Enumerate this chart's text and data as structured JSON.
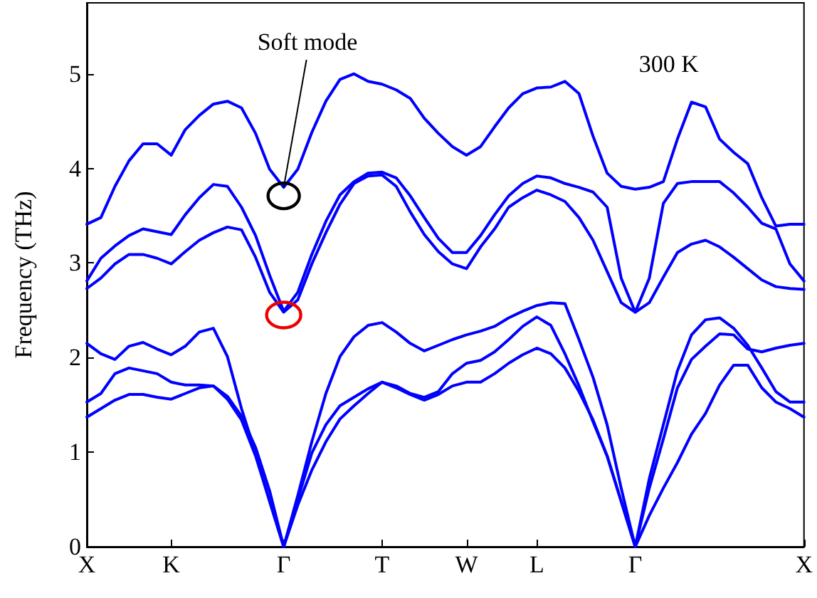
{
  "chart_data": {
    "type": "line",
    "ylabel": "Frequency (THz)",
    "ylim": [
      0,
      5.75
    ],
    "categories": [
      "X",
      null,
      null,
      null,
      null,
      null,
      "K",
      null,
      null,
      null,
      null,
      null,
      null,
      null,
      "Γ",
      null,
      null,
      null,
      null,
      null,
      null,
      "T",
      null,
      null,
      null,
      null,
      null,
      "W",
      null,
      null,
      null,
      null,
      "L",
      null,
      null,
      null,
      null,
      null,
      null,
      "Γ",
      null,
      null,
      null,
      null,
      null,
      null,
      null,
      null,
      null,
      null,
      null,
      "X"
    ],
    "yticks": [
      0,
      1,
      2,
      3,
      4,
      5
    ],
    "grid": false,
    "marker": "none",
    "line_style": "solid",
    "annotations": [
      {
        "text": "Soft mode",
        "x": "Γ",
        "y": 3.8
      },
      "300 K"
    ],
    "series": [
      {
        "color": "#0000ff",
        "values": [
          3.41,
          3.48,
          3.81,
          4.08,
          4.26,
          4.26,
          4.14,
          4.41,
          4.56,
          4.68,
          4.71,
          4.64,
          4.37,
          3.99,
          3.8,
          3.99,
          4.38,
          4.71,
          4.94,
          5.0,
          4.92,
          4.89,
          4.83,
          4.74,
          4.53,
          4.37,
          4.23,
          4.14,
          4.23,
          4.44,
          4.64,
          4.79,
          4.85,
          4.86,
          4.92,
          4.79,
          4.34,
          3.95,
          3.81,
          3.78,
          3.8,
          3.86,
          4.31,
          4.7,
          4.65,
          4.31,
          4.17,
          4.05,
          3.69,
          3.39,
          3.41,
          3.41
        ]
      },
      {
        "color": "#0000ff",
        "values": [
          2.81,
          3.05,
          3.18,
          3.29,
          3.36,
          3.33,
          3.3,
          3.51,
          3.69,
          3.83,
          3.81,
          3.59,
          3.29,
          2.87,
          2.49,
          2.69,
          3.09,
          3.44,
          3.72,
          3.86,
          3.95,
          3.96,
          3.9,
          3.71,
          3.48,
          3.26,
          3.11,
          3.11,
          3.29,
          3.51,
          3.71,
          3.84,
          3.92,
          3.9,
          3.84,
          3.8,
          3.75,
          3.59,
          2.84,
          2.48,
          2.84,
          3.63,
          3.84,
          3.86,
          3.86,
          3.86,
          3.74,
          3.59,
          3.42,
          3.36,
          2.99,
          2.81
        ]
      },
      {
        "color": "#0000ff",
        "values": [
          2.73,
          2.84,
          2.99,
          3.09,
          3.09,
          3.05,
          2.99,
          3.12,
          3.24,
          3.32,
          3.38,
          3.35,
          3.06,
          2.69,
          2.48,
          2.61,
          2.99,
          3.32,
          3.62,
          3.84,
          3.92,
          3.93,
          3.81,
          3.54,
          3.3,
          3.12,
          2.99,
          2.94,
          3.17,
          3.36,
          3.59,
          3.69,
          3.77,
          3.72,
          3.65,
          3.48,
          3.24,
          2.91,
          2.58,
          2.48,
          2.58,
          2.85,
          3.11,
          3.2,
          3.24,
          3.17,
          3.06,
          2.94,
          2.82,
          2.75,
          2.73,
          2.72
        ]
      },
      {
        "color": "#0000ff",
        "values": [
          2.15,
          2.04,
          1.98,
          2.12,
          2.16,
          2.09,
          2.03,
          2.12,
          2.27,
          2.31,
          2.01,
          1.46,
          0.99,
          0.48,
          0,
          0.54,
          1.11,
          1.62,
          2.01,
          2.22,
          2.34,
          2.37,
          2.27,
          2.15,
          2.07,
          2.13,
          2.19,
          2.24,
          2.28,
          2.33,
          2.42,
          2.49,
          2.55,
          2.58,
          2.57,
          2.19,
          1.79,
          1.29,
          0.62,
          0,
          0.72,
          1.29,
          1.86,
          2.24,
          2.4,
          2.42,
          2.31,
          2.13,
          1.89,
          1.64,
          1.53,
          1.53
        ]
      },
      {
        "color": "#0000ff",
        "values": [
          1.53,
          1.62,
          1.83,
          1.89,
          1.86,
          1.83,
          1.74,
          1.71,
          1.71,
          1.7,
          1.56,
          1.34,
          0.96,
          0.48,
          0,
          0.5,
          0.99,
          1.29,
          1.49,
          1.58,
          1.67,
          1.74,
          1.7,
          1.62,
          1.58,
          1.64,
          1.83,
          1.94,
          1.97,
          2.06,
          2.19,
          2.33,
          2.43,
          2.34,
          2.04,
          1.7,
          1.32,
          0.96,
          0.48,
          0,
          0.62,
          1.14,
          1.68,
          1.98,
          2.12,
          2.25,
          2.24,
          2.09,
          2.06,
          2.1,
          2.13,
          2.15
        ]
      },
      {
        "color": "#0000ff",
        "values": [
          1.37,
          1.46,
          1.55,
          1.61,
          1.61,
          1.58,
          1.56,
          1.62,
          1.68,
          1.7,
          1.59,
          1.38,
          1.05,
          0.59,
          0,
          0.44,
          0.81,
          1.11,
          1.35,
          1.49,
          1.62,
          1.74,
          1.68,
          1.61,
          1.55,
          1.61,
          1.7,
          1.74,
          1.74,
          1.83,
          1.94,
          2.03,
          2.1,
          2.04,
          1.89,
          1.64,
          1.34,
          0.96,
          0.48,
          0,
          0.33,
          0.62,
          0.89,
          1.19,
          1.41,
          1.71,
          1.92,
          1.92,
          1.68,
          1.53,
          1.46,
          1.37
        ]
      }
    ]
  }
}
